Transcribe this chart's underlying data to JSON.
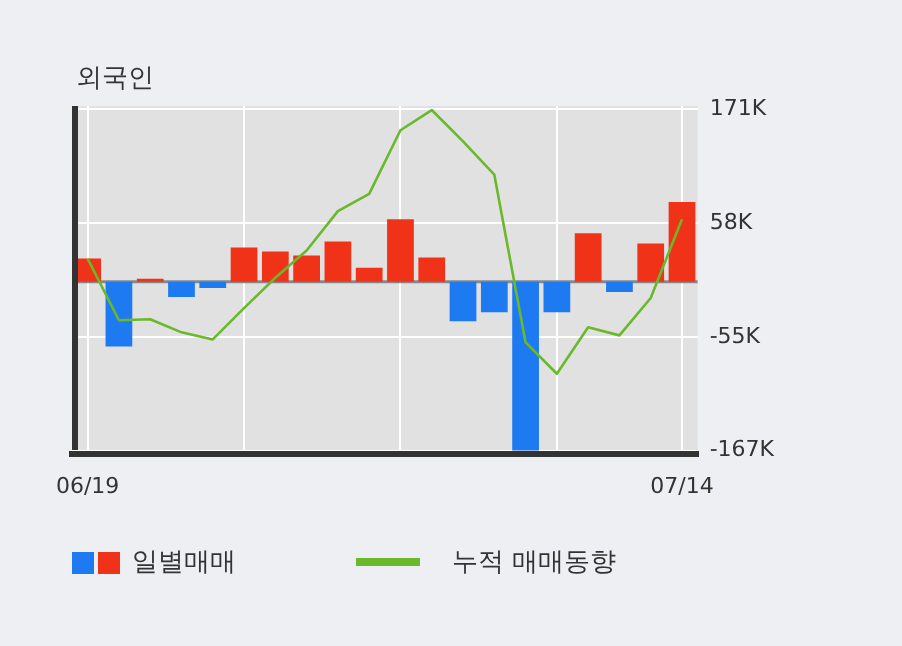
{
  "chart_data": {
    "type": "bar",
    "title": "외국인",
    "categories": [
      "06/19",
      null,
      null,
      null,
      null,
      null,
      null,
      null,
      null,
      null,
      null,
      null,
      null,
      null,
      null,
      null,
      null,
      null,
      null,
      "07/14"
    ],
    "series": [
      {
        "name": "일별매매",
        "colors": [
          "#f03218",
          "#1e7af0",
          "#f03218",
          "#1e7af0",
          "#1e7af0",
          "#f03218",
          "#f03218",
          "#f03218",
          "#f03218",
          "#f03218",
          "#f03218",
          "#f03218",
          "#1e7af0",
          "#1e7af0",
          "#1e7af0",
          "#1e7af0",
          "#f03218",
          "#1e7af0",
          "#f03218",
          "#f03218"
        ],
        "values": [
          23,
          -64,
          3,
          -15,
          -6,
          34,
          30,
          26,
          40,
          14,
          62,
          24,
          -39,
          -30,
          -167,
          -30,
          48,
          -10,
          38,
          79
        ]
      },
      {
        "name": "누적 매매동향",
        "type": "line",
        "color": "#6ab82c",
        "values": [
          23,
          -38,
          -37,
          -50,
          -57,
          -26,
          4,
          31,
          70,
          87,
          150,
          170,
          139,
          106,
          -60,
          -91,
          -45,
          -53,
          -16,
          62
        ]
      }
    ],
    "ylim": [
      -170,
      174
    ],
    "yticks": [
      {
        "value": 171,
        "label": "171K"
      },
      {
        "value": 58,
        "label": "58K"
      },
      {
        "value": -55,
        "label": "-55K"
      },
      {
        "value": -167,
        "label": "-167K"
      }
    ],
    "grid": true,
    "legend": "bottom",
    "marker": "none"
  }
}
